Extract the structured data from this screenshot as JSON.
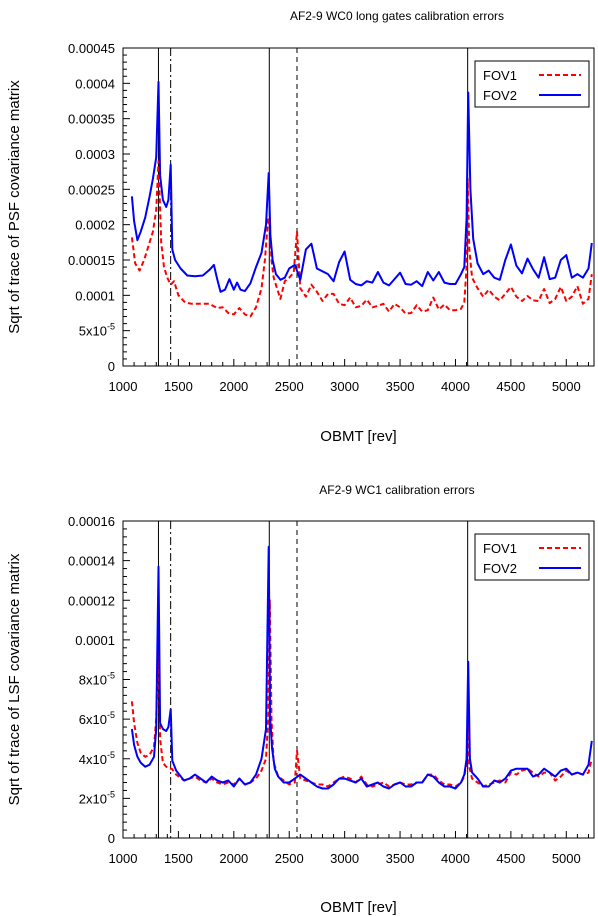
{
  "chart_data": [
    {
      "type": "line",
      "title": "AF2-9 WC0 long gates calibration errors",
      "xlabel": "OBMT [rev]",
      "ylabel": "Sqrt of trace of PSF covariance matrix",
      "xlim": [
        1000,
        5250
      ],
      "ylim": [
        0,
        0.00045
      ],
      "xticks": [
        1000,
        1500,
        2000,
        2500,
        3000,
        3500,
        4000,
        4500,
        5000
      ],
      "xtick_labels": [
        "1000",
        "1500",
        "2000",
        "2500",
        "3000",
        "3500",
        "4000",
        "4500",
        "5000"
      ],
      "yticks": [
        0,
        5e-05,
        0.0001,
        0.00015,
        0.0002,
        0.00025,
        0.0003,
        0.00035,
        0.0004,
        0.00045
      ],
      "ytick_labels": [
        {
          "base": "0"
        },
        {
          "base": "5x10",
          "exp": "-5"
        },
        {
          "base": "0.0001"
        },
        {
          "base": "0.00015"
        },
        {
          "base": "0.0002"
        },
        {
          "base": "0.00025"
        },
        {
          "base": "0.0003"
        },
        {
          "base": "0.00035"
        },
        {
          "base": "0.0004"
        },
        {
          "base": "0.00045"
        }
      ],
      "vlines_solid": [
        1320,
        2320,
        4110
      ],
      "vlines_dashdot": [
        1430
      ],
      "vlines_dashed": [
        2570
      ],
      "legend": "top-right",
      "series": [
        {
          "name": "FOV1",
          "color": "#ff0000",
          "style": "dashed",
          "x": [
            1080,
            1110,
            1150,
            1190,
            1230,
            1270,
            1300,
            1320,
            1345,
            1370,
            1400,
            1430,
            1460,
            1500,
            1560,
            1620,
            1700,
            1780,
            1850,
            1900,
            1950,
            2000,
            2050,
            2100,
            2150,
            2200,
            2250,
            2280,
            2310,
            2325,
            2340,
            2360,
            2390,
            2420,
            2460,
            2500,
            2540,
            2570,
            2600,
            2650,
            2700,
            2750,
            2800,
            2850,
            2900,
            2950,
            3000,
            3050,
            3100,
            3150,
            3200,
            3250,
            3300,
            3350,
            3400,
            3450,
            3500,
            3550,
            3600,
            3650,
            3700,
            3750,
            3800,
            3850,
            3900,
            3950,
            4000,
            4050,
            4080,
            4100,
            4110,
            4125,
            4150,
            4200,
            4250,
            4300,
            4350,
            4400,
            4450,
            4500,
            4550,
            4600,
            4650,
            4700,
            4750,
            4800,
            4850,
            4900,
            4950,
            5000,
            5050,
            5100,
            5150,
            5200,
            5230
          ],
          "y": [
            0.000182,
            0.000145,
            0.000135,
            0.00015,
            0.00017,
            0.00019,
            0.00022,
            0.00029,
            0.000175,
            0.00014,
            0.000125,
            0.000115,
            0.00012,
            0.0001,
            9e-05,
            8.8e-05,
            8.8e-05,
            8.8e-05,
            8.2e-05,
            8.3e-05,
            7.5e-05,
            7.3e-05,
            8.2e-05,
            7.3e-05,
            7e-05,
            8.3e-05,
            0.00011,
            0.00015,
            0.00021,
            0.000195,
            0.00015,
            0.000125,
            0.00011,
            9.5e-05,
            0.00012,
            0.000125,
            0.000132,
            0.00019,
            0.00011,
            9.8e-05,
            0.000115,
            0.000105,
            9.2e-05,
            0.000102,
            0.000102,
            8.8e-05,
            8.6e-05,
            9.7e-05,
            8.3e-05,
            8.5e-05,
            9.4e-05,
            8.3e-05,
            8.5e-05,
            8.8e-05,
            7.7e-05,
            8.8e-05,
            8.3e-05,
            7.4e-05,
            7.5e-05,
            8.6e-05,
            7.7e-05,
            7.9e-05,
            9.7e-05,
            8e-05,
            8.7e-05,
            7.9e-05,
            7.9e-05,
            8.1e-05,
            9e-05,
            0.00014,
            0.000265,
            0.000165,
            0.000125,
            0.00011,
            9.8e-05,
            0.000108,
            9.8e-05,
            9.3e-05,
            0.000102,
            0.000112,
            9.8e-05,
            9.2e-05,
            9.9e-05,
            9.3e-05,
            9.2e-05,
            0.000109,
            8.9e-05,
            9.5e-05,
            0.000112,
            9.2e-05,
            9.8e-05,
            0.000113,
            8.8e-05,
            9.5e-05,
            0.00013
          ]
        },
        {
          "name": "FOV2",
          "color": "#0000ff",
          "style": "solid",
          "x": [
            1080,
            1100,
            1130,
            1160,
            1200,
            1240,
            1270,
            1300,
            1320,
            1335,
            1360,
            1390,
            1410,
            1430,
            1445,
            1470,
            1520,
            1580,
            1650,
            1720,
            1780,
            1820,
            1850,
            1880,
            1920,
            1960,
            2000,
            2030,
            2060,
            2100,
            2150,
            2200,
            2250,
            2290,
            2315,
            2330,
            2350,
            2380,
            2420,
            2460,
            2500,
            2550,
            2600,
            2650,
            2700,
            2750,
            2800,
            2850,
            2900,
            2950,
            3000,
            3050,
            3100,
            3150,
            3200,
            3250,
            3300,
            3350,
            3400,
            3450,
            3500,
            3550,
            3600,
            3650,
            3700,
            3750,
            3800,
            3850,
            3900,
            3950,
            4000,
            4050,
            4080,
            4100,
            4115,
            4135,
            4160,
            4200,
            4250,
            4300,
            4350,
            4400,
            4450,
            4500,
            4550,
            4600,
            4650,
            4700,
            4750,
            4800,
            4850,
            4900,
            4950,
            5000,
            5050,
            5100,
            5150,
            5200,
            5230
          ],
          "y": [
            0.00024,
            0.000205,
            0.000178,
            0.00019,
            0.00021,
            0.00024,
            0.000265,
            0.000295,
            0.000402,
            0.00027,
            0.000235,
            0.000225,
            0.000235,
            0.000285,
            0.000165,
            0.00015,
            0.000138,
            0.000128,
            0.000127,
            0.000128,
            0.000136,
            0.000143,
            0.000123,
            0.000105,
            0.000108,
            0.000123,
            0.000108,
            0.000118,
            0.000108,
            0.000106,
            0.000117,
            0.00014,
            0.00016,
            0.0002,
            0.000273,
            0.000185,
            0.00015,
            0.00013,
            0.000122,
            0.000125,
            0.000138,
            0.000143,
            0.000122,
            0.000165,
            0.000173,
            0.000138,
            0.000134,
            0.00013,
            0.00012,
            0.000147,
            0.000162,
            0.000122,
            0.000116,
            0.000114,
            0.00012,
            0.000118,
            0.000133,
            0.000118,
            0.000114,
            0.000123,
            0.000132,
            0.000116,
            0.000115,
            0.00012,
            0.000113,
            0.000133,
            0.000121,
            0.000133,
            0.000118,
            0.000116,
            0.000116,
            0.00013,
            0.00014,
            0.00021,
            0.000387,
            0.00025,
            0.00018,
            0.000145,
            0.00013,
            0.000135,
            0.000125,
            0.000122,
            0.00015,
            0.000172,
            0.000142,
            0.000131,
            0.000152,
            0.000137,
            0.000125,
            0.000154,
            0.000123,
            0.000125,
            0.00015,
            0.000157,
            0.000125,
            0.00013,
            0.000125,
            0.000138,
            0.000174
          ]
        }
      ]
    },
    {
      "type": "line",
      "title": "AF2-9 WC1 calibration errors",
      "xlabel": "OBMT [rev]",
      "ylabel": "Sqrt of trace of LSF covariance matrix",
      "xlim": [
        1000,
        5250
      ],
      "ylim": [
        0,
        0.00016
      ],
      "xticks": [
        1000,
        1500,
        2000,
        2500,
        3000,
        3500,
        4000,
        4500,
        5000
      ],
      "xtick_labels": [
        "1000",
        "1500",
        "2000",
        "2500",
        "3000",
        "3500",
        "4000",
        "4500",
        "5000"
      ],
      "yticks": [
        0,
        2e-05,
        4e-05,
        6e-05,
        8e-05,
        0.0001,
        0.00012,
        0.00014,
        0.00016
      ],
      "ytick_labels": [
        {
          "base": "0"
        },
        {
          "base": "2x10",
          "exp": "-5"
        },
        {
          "base": "4x10",
          "exp": "-5"
        },
        {
          "base": "6x10",
          "exp": "-5"
        },
        {
          "base": "8x10",
          "exp": "-5"
        },
        {
          "base": "0.0001"
        },
        {
          "base": "0.00012"
        },
        {
          "base": "0.00014"
        },
        {
          "base": "0.00016"
        }
      ],
      "vlines_solid": [
        1320,
        2320,
        4110
      ],
      "vlines_dashdot": [
        1430
      ],
      "vlines_dashed": [
        2570
      ],
      "legend": "top-right",
      "series": [
        {
          "name": "FOV1",
          "color": "#ff0000",
          "style": "dashed",
          "x": [
            1080,
            1100,
            1130,
            1160,
            1200,
            1240,
            1280,
            1300,
            1320,
            1335,
            1360,
            1390,
            1420,
            1440,
            1480,
            1550,
            1600,
            1650,
            1700,
            1750,
            1800,
            1850,
            1900,
            1950,
            2000,
            2050,
            2100,
            2150,
            2200,
            2250,
            2290,
            2310,
            2325,
            2340,
            2360,
            2400,
            2450,
            2500,
            2550,
            2570,
            2600,
            2650,
            2700,
            2750,
            2800,
            2850,
            2900,
            2950,
            3000,
            3050,
            3100,
            3150,
            3200,
            3250,
            3300,
            3350,
            3400,
            3450,
            3500,
            3550,
            3600,
            3650,
            3700,
            3750,
            3800,
            3850,
            3900,
            3950,
            4000,
            4050,
            4080,
            4100,
            4110,
            4125,
            4150,
            4200,
            4250,
            4300,
            4350,
            4400,
            4450,
            4500,
            4550,
            4600,
            4650,
            4700,
            4750,
            4800,
            4850,
            4900,
            4950,
            5000,
            5050,
            5100,
            5150,
            5200,
            5230
          ],
          "y": [
            6.9e-05,
            5.8e-05,
            4.8e-05,
            4.3e-05,
            4.1e-05,
            4.2e-05,
            4.6e-05,
            6e-05,
            9.8e-05,
            5e-05,
            3.8e-05,
            3.6e-05,
            3.5e-05,
            3.5e-05,
            3.2e-05,
            2.9e-05,
            3e-05,
            3.1e-05,
            2.9e-05,
            2.8e-05,
            3e-05,
            2.8e-05,
            2.7e-05,
            2.8e-05,
            2.7e-05,
            3e-05,
            2.7e-05,
            2.8e-05,
            3e-05,
            3.4e-05,
            4e-05,
            6e-05,
            0.00012,
            6e-05,
            3.8e-05,
            3.1e-05,
            2.9e-05,
            2.7e-05,
            2.8e-05,
            4.4e-05,
            3e-05,
            2.9e-05,
            2.8e-05,
            2.7e-05,
            2.7e-05,
            2.6e-05,
            2.8e-05,
            3e-05,
            3.1e-05,
            3e-05,
            2.8e-05,
            3.1e-05,
            2.7e-05,
            2.6e-05,
            2.7e-05,
            2.8e-05,
            2.6e-05,
            2.7e-05,
            2.8e-05,
            2.7e-05,
            2.7e-05,
            2.8e-05,
            2.8e-05,
            3.2e-05,
            3.2e-05,
            2.9e-05,
            2.7e-05,
            2.7e-05,
            2.6e-05,
            2.8e-05,
            3.1e-05,
            3.8e-05,
            6e-05,
            3.6e-05,
            3e-05,
            2.8e-05,
            2.6e-05,
            2.7e-05,
            2.8e-05,
            2.9e-05,
            2.8e-05,
            3.3e-05,
            3.2e-05,
            3.4e-05,
            3.5e-05,
            3.3e-05,
            3.1e-05,
            3.3e-05,
            3.3e-05,
            2.9e-05,
            3.1e-05,
            3.4e-05,
            3.2e-05,
            3.3e-05,
            3.2e-05,
            3.3e-05,
            4e-05
          ]
        },
        {
          "name": "FOV2",
          "color": "#0000ff",
          "style": "solid",
          "x": [
            1080,
            1100,
            1130,
            1160,
            1200,
            1240,
            1280,
            1300,
            1320,
            1335,
            1360,
            1390,
            1410,
            1430,
            1445,
            1480,
            1550,
            1600,
            1650,
            1700,
            1750,
            1800,
            1850,
            1900,
            1950,
            2000,
            2050,
            2100,
            2150,
            2200,
            2250,
            2290,
            2315,
            2328,
            2345,
            2370,
            2400,
            2450,
            2500,
            2550,
            2600,
            2650,
            2700,
            2750,
            2800,
            2850,
            2900,
            2950,
            3000,
            3050,
            3100,
            3150,
            3200,
            3250,
            3300,
            3350,
            3400,
            3450,
            3500,
            3550,
            3600,
            3650,
            3700,
            3750,
            3800,
            3850,
            3900,
            3950,
            4000,
            4050,
            4080,
            4100,
            4115,
            4130,
            4150,
            4200,
            4250,
            4300,
            4350,
            4400,
            4450,
            4500,
            4550,
            4600,
            4650,
            4700,
            4750,
            4800,
            4850,
            4900,
            4950,
            5000,
            5050,
            5100,
            5150,
            5200,
            5230
          ],
          "y": [
            5.5e-05,
            4.7e-05,
            4.1e-05,
            3.8e-05,
            3.6e-05,
            3.7e-05,
            4.1e-05,
            5.5e-05,
            0.000137,
            5.8e-05,
            5.5e-05,
            5.4e-05,
            5.6e-05,
            6.5e-05,
            3.9e-05,
            3.4e-05,
            2.9e-05,
            3e-05,
            3.2e-05,
            3e-05,
            2.8e-05,
            3.1e-05,
            2.9e-05,
            2.8e-05,
            2.9e-05,
            2.6e-05,
            3e-05,
            2.7e-05,
            2.8e-05,
            3.2e-05,
            4e-05,
            5.5e-05,
            0.000147,
            6e-05,
            4.5e-05,
            3.5e-05,
            3.1e-05,
            2.8e-05,
            2.8e-05,
            3e-05,
            3.2e-05,
            3e-05,
            2.8e-05,
            2.6e-05,
            2.5e-05,
            2.5e-05,
            2.7e-05,
            3e-05,
            3e-05,
            2.9e-05,
            2.8e-05,
            3e-05,
            2.6e-05,
            2.7e-05,
            2.8e-05,
            2.6e-05,
            2.5e-05,
            2.7e-05,
            2.8e-05,
            2.6e-05,
            2.6e-05,
            2.8e-05,
            2.8e-05,
            3.2e-05,
            3.1e-05,
            2.8e-05,
            2.6e-05,
            2.6e-05,
            2.5e-05,
            2.8e-05,
            3.2e-05,
            4e-05,
            8.9e-05,
            4e-05,
            3.3e-05,
            3e-05,
            2.6e-05,
            2.6e-05,
            2.9e-05,
            2.8e-05,
            3e-05,
            3.4e-05,
            3.5e-05,
            3.5e-05,
            3.5e-05,
            3.1e-05,
            3.2e-05,
            3.5e-05,
            3.3e-05,
            3.1e-05,
            3.4e-05,
            3.5e-05,
            3.2e-05,
            3.3e-05,
            3.2e-05,
            3.7e-05,
            4.9e-05
          ]
        }
      ]
    }
  ]
}
